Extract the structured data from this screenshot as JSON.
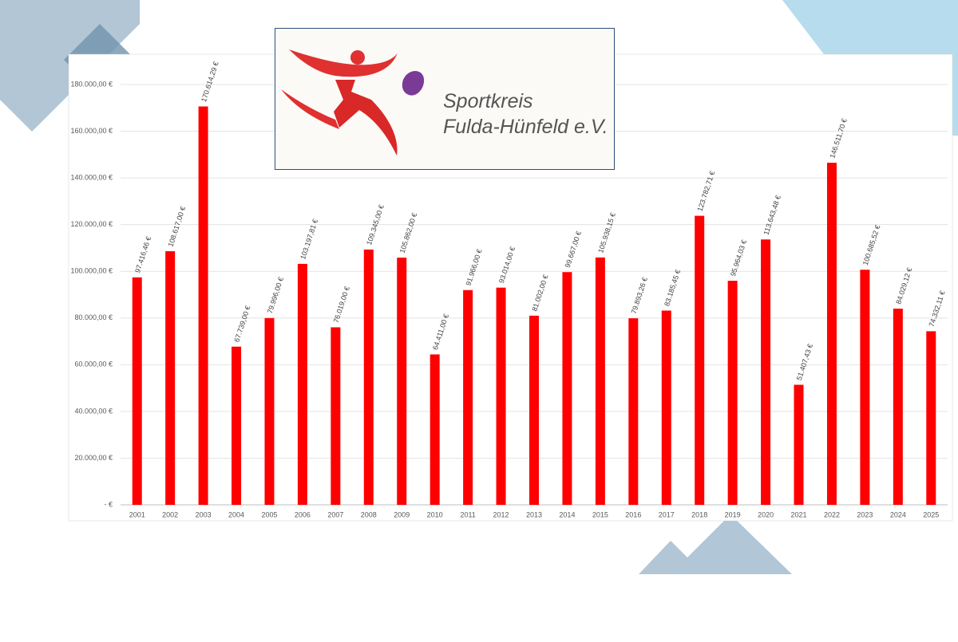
{
  "chart_data": {
    "type": "bar",
    "categories": [
      "2001",
      "2002",
      "2003",
      "2004",
      "2005",
      "2006",
      "2007",
      "2008",
      "2009",
      "2010",
      "2011",
      "2012",
      "2013",
      "2014",
      "2015",
      "2016",
      "2017",
      "2018",
      "2019",
      "2020",
      "2021",
      "2022",
      "2023",
      "2024",
      "2025"
    ],
    "values": [
      97416.46,
      108617.0,
      170614.29,
      67739.0,
      79996.0,
      103197.81,
      76019.0,
      109345.0,
      105862.0,
      64411.0,
      91966.0,
      93014.0,
      81002.0,
      99667.0,
      105938.15,
      79893.26,
      83185.45,
      123782.71,
      95964.03,
      113643.48,
      51407.43,
      146511.7,
      100685.52,
      84029.12,
      74332.11
    ],
    "value_labels": [
      "97.416,46 €",
      "108.617,00 €",
      "170.614,29 €",
      "67.739,00 €",
      "79.996,00 €",
      "103.197,81 €",
      "76.019,00 €",
      "109.345,00 €",
      "105.862,00 €",
      "64.411,00 €",
      "91.966,00 €",
      "93.014,00 €",
      "81.002,00 €",
      "99.667,00 €",
      "105.938,15 €",
      "79.893,26 €",
      "83.185,45 €",
      "123.782,71 €",
      "95.964,03 €",
      "113.643,48 €",
      "51.407,43 €",
      "146.511,70 €",
      "100.685,52 €",
      "84.029,12 €",
      "74.332,11 €"
    ],
    "color": "#ff0000",
    "ylim": [
      0,
      180000
    ],
    "yticks": [
      {
        "value": 0,
        "label": "-   €"
      },
      {
        "value": 20000,
        "label": "20.000,00 €"
      },
      {
        "value": 40000,
        "label": "40.000,00 €"
      },
      {
        "value": 60000,
        "label": "60.000,00 €"
      },
      {
        "value": 80000,
        "label": "80.000,00 €"
      },
      {
        "value": 100000,
        "label": "100.000,00 €"
      },
      {
        "value": 120000,
        "label": "120.000,00 €"
      },
      {
        "value": 140000,
        "label": "140.000,00 €"
      },
      {
        "value": 160000,
        "label": "160.000,00 €"
      },
      {
        "value": 180000,
        "label": "180.000,00 €"
      }
    ],
    "grid": true
  },
  "logo": {
    "lines": [
      "Sportkreis",
      "Fulda-Hünfeld e.V."
    ]
  }
}
